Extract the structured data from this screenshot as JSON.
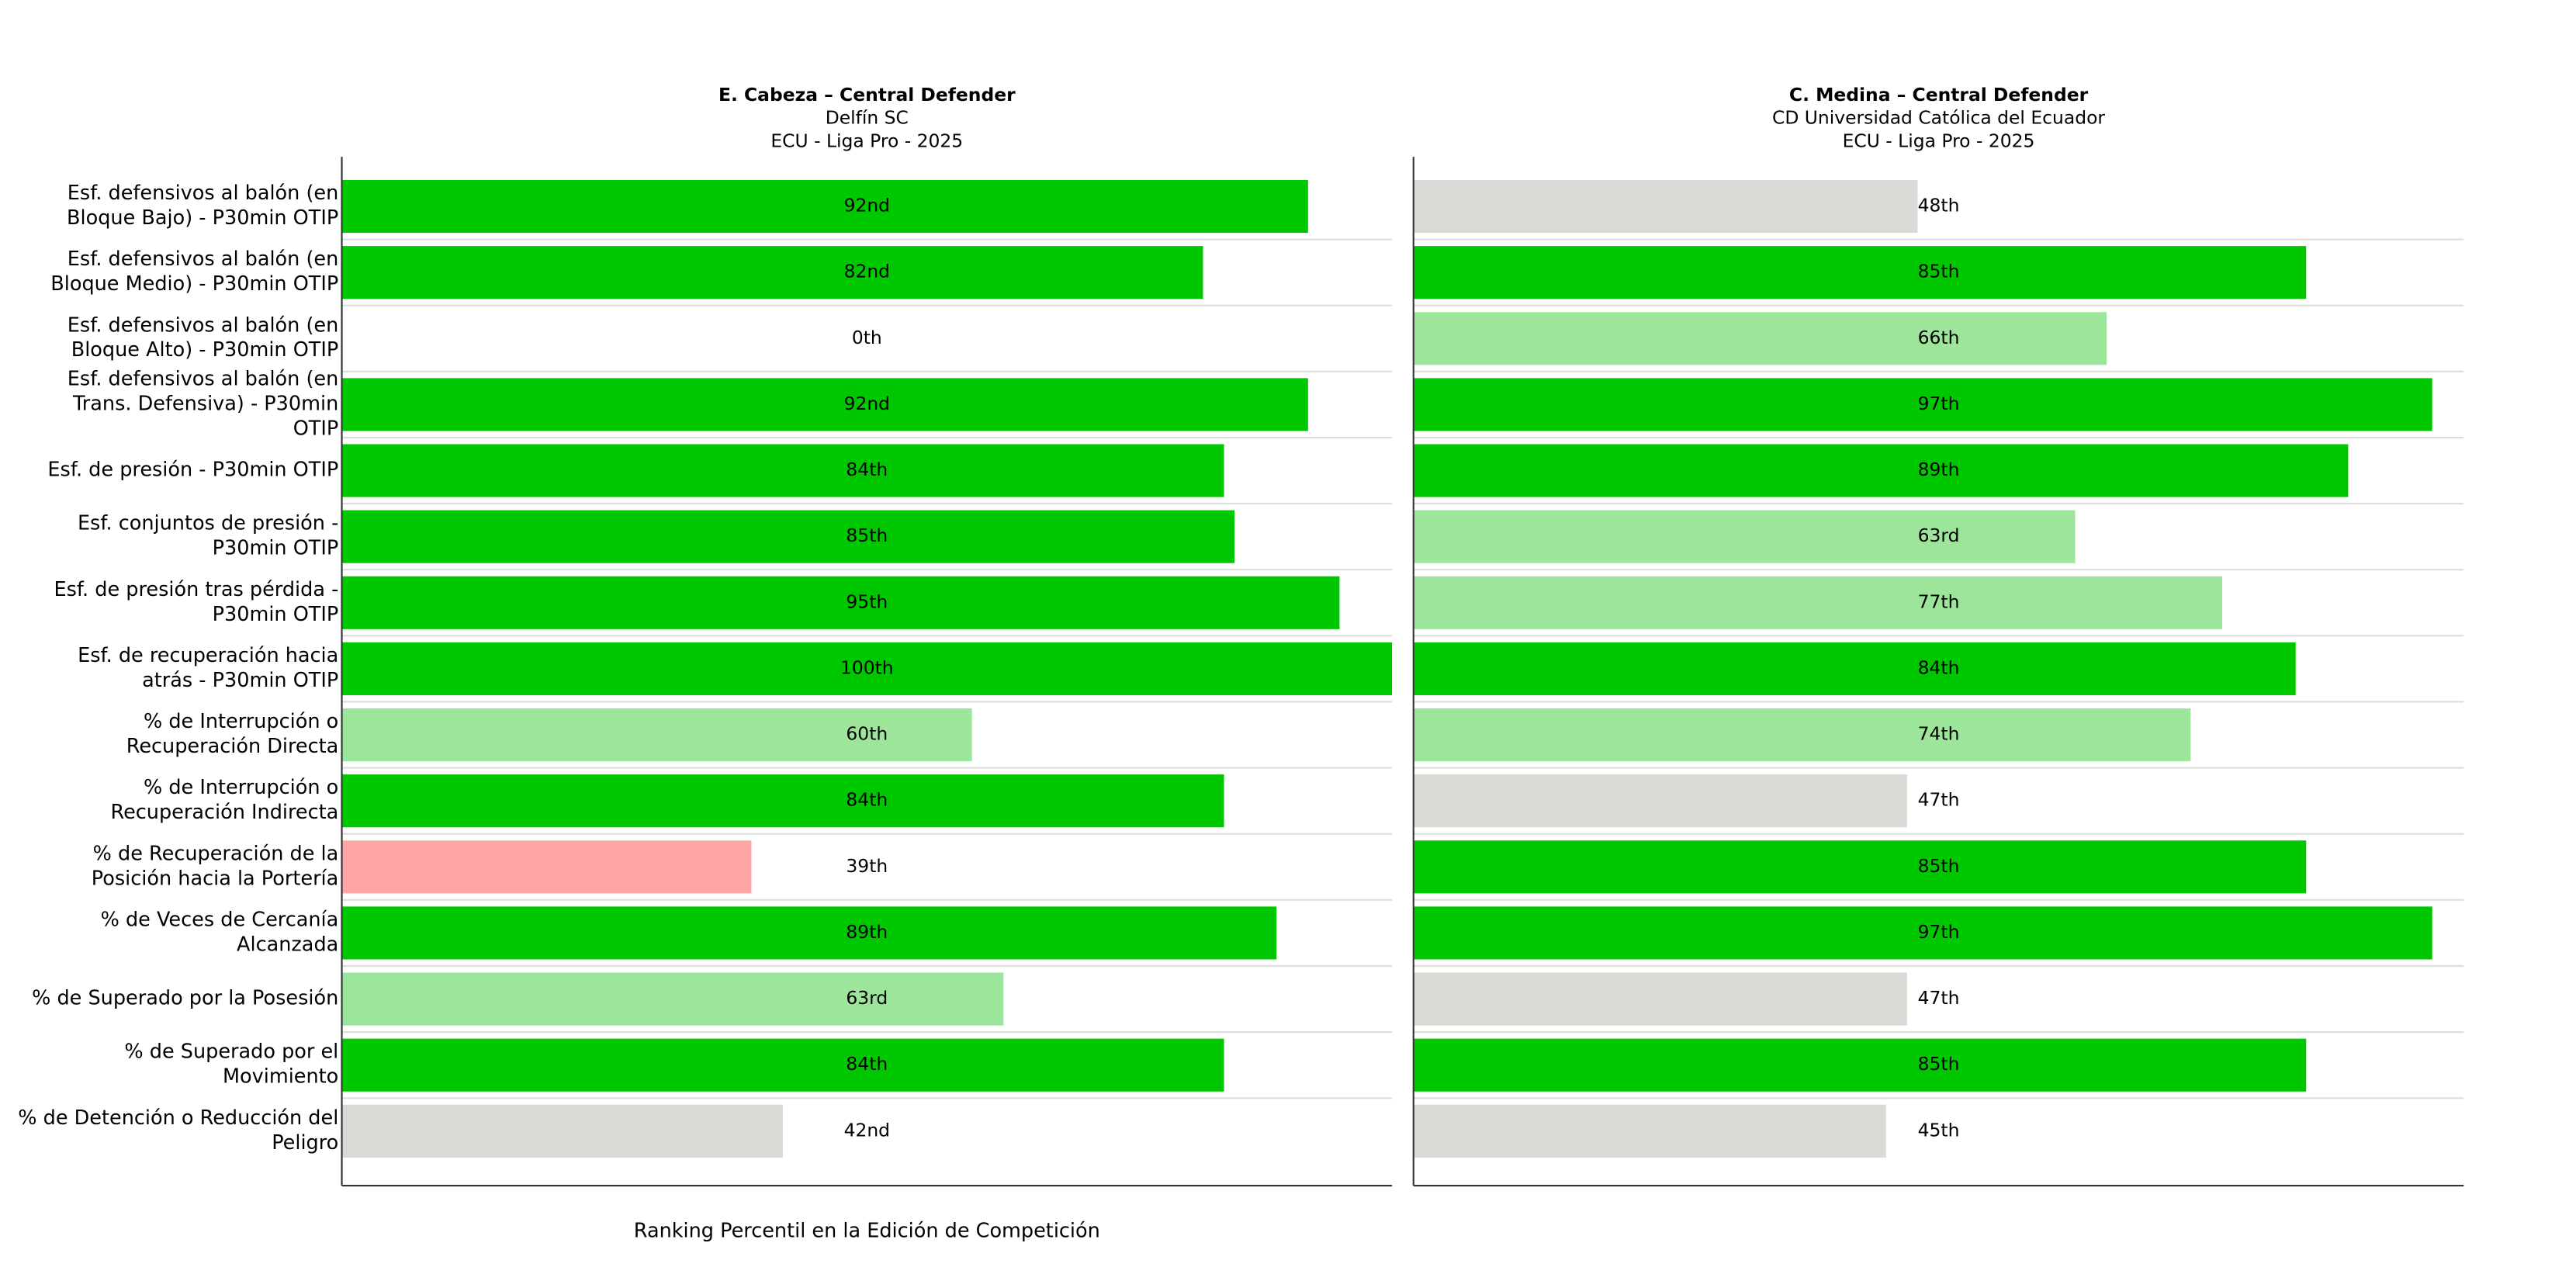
{
  "chart_data": [
    {
      "type": "bar",
      "orientation": "horizontal",
      "title": "E. Cabeza – Central Defender",
      "subtitle": [
        "Delfín SC",
        "ECU - Liga Pro - 2025"
      ],
      "xlabel": "Ranking Percentil en la Edición de Competición",
      "categories": [
        "Esf. defensivos al balón (en\nBloque Bajo) - P30min OTIP",
        "Esf. defensivos al balón (en\nBloque Medio) - P30min OTIP",
        "Esf. defensivos al balón (en\nBloque Alto) - P30min OTIP",
        "Esf. defensivos al balón (en\nTrans. Defensiva) - P30min\nOTIP",
        "Esf. de presión - P30min OTIP",
        "Esf. conjuntos de presión -\nP30min OTIP",
        "Esf. de presión tras pérdida -\nP30min OTIP",
        "Esf. de recuperación hacia\natrás - P30min OTIP",
        "% de Interrupción o\nRecuperación Directa",
        "% de Interrupción o\nRecuperación Indirecta",
        "% de Recuperación de la\nPosición hacia la Portería",
        "% de Veces de Cercanía\nAlcanzada",
        "% de Superado por la Posesión",
        "% de Superado por el\nMovimiento",
        "% de Detención o Reducción del\nPeligro"
      ],
      "series": [
        {
          "values": [
            92,
            82,
            0,
            92,
            84,
            85,
            95,
            100,
            60,
            84,
            39,
            89,
            63,
            84,
            42
          ],
          "value_labels": [
            "92nd",
            "82nd",
            "0th",
            "92nd",
            "84th",
            "85th",
            "95th",
            "100th",
            "60th",
            "84th",
            "39th",
            "89th",
            "63rd",
            "84th",
            "42nd"
          ],
          "colors": [
            "#00c800",
            "#00c800",
            "#d9d9d5",
            "#00c800",
            "#00c800",
            "#00c800",
            "#00c800",
            "#00c800",
            "#9de59a",
            "#00c800",
            "#ffa6a6",
            "#00c800",
            "#9de59a",
            "#00c800",
            "#d9d9d5"
          ]
        }
      ],
      "xlim": [
        0,
        100
      ]
    },
    {
      "type": "bar",
      "orientation": "horizontal",
      "title": "C. Medina – Central Defender",
      "subtitle": [
        "CD Universidad Católica del Ecuador",
        "ECU - Liga Pro - 2025"
      ],
      "series": [
        {
          "values": [
            48,
            85,
            66,
            97,
            89,
            63,
            77,
            84,
            74,
            47,
            85,
            97,
            47,
            85,
            45
          ],
          "value_labels": [
            "48th",
            "85th",
            "66th",
            "97th",
            "89th",
            "63rd",
            "77th",
            "84th",
            "74th",
            "47th",
            "85th",
            "97th",
            "47th",
            "85th",
            "45th"
          ],
          "colors": [
            "#d9d9d5",
            "#00c800",
            "#9de59a",
            "#00c800",
            "#00c800",
            "#9de59a",
            "#9de59a",
            "#00c800",
            "#9de59a",
            "#d9d9d5",
            "#00c800",
            "#00c800",
            "#d9d9d5",
            "#00c800",
            "#d9d9d5"
          ]
        }
      ],
      "xlim": [
        0,
        100
      ]
    }
  ]
}
